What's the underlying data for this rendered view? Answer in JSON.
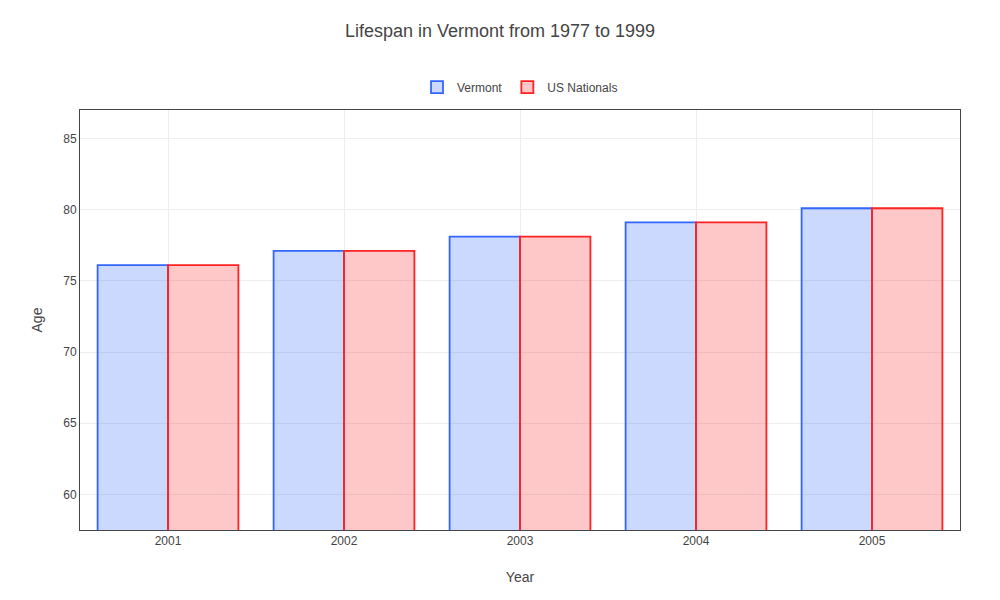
{
  "chart_data": {
    "type": "bar",
    "title": "Lifespan in Vermont from 1977 to 1999",
    "categories": [
      "2001",
      "2002",
      "2003",
      "2004",
      "2005"
    ],
    "series": [
      {
        "name": "Vermont",
        "color": "#3366ff",
        "values": [
          76.1,
          77.1,
          78.1,
          79.1,
          80.1
        ]
      },
      {
        "name": "US Nationals",
        "color": "#ff2222",
        "values": [
          76.1,
          77.1,
          78.1,
          79.1,
          80.1
        ]
      }
    ],
    "xlabel": "Year",
    "ylabel": "Age",
    "ylim": [
      57.5,
      87
    ],
    "yticks": [
      60,
      65,
      70,
      75,
      80,
      85
    ],
    "grid": true,
    "legend": "top"
  }
}
